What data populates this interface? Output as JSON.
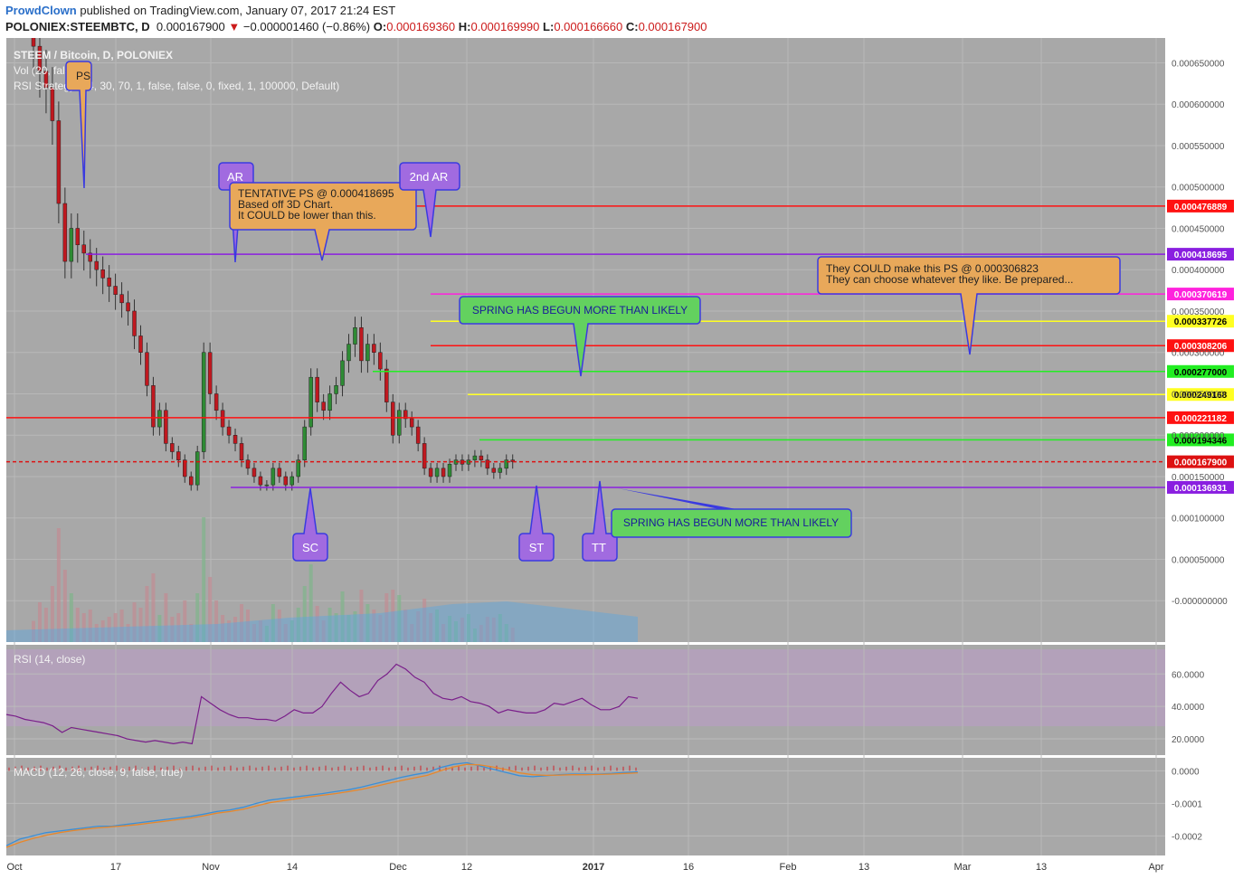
{
  "header": {
    "author": "ProwdClown",
    "published": "published on TradingView.com, January 07, 2017 21:24 EST",
    "symbol": "POLONIEX:STEEMBTC, D",
    "last": "0.000167900",
    "change_arrow": "▼",
    "change": "−0.000001460 (−0.86%)",
    "o_label": "O:",
    "o": "0.000169360",
    "h_label": "H:",
    "h": "0.000169990",
    "l_label": "L:",
    "l": "0.000166660",
    "c_label": "C:",
    "c": "0.000167900"
  },
  "legend": {
    "title": "STEEM / Bitcoin, D, POLONIEX",
    "vol": "Vol (20, false)",
    "strategy": "RSI Strategy (14, 30, 70, 1, false, false, 0, fixed, 1, 100000, Default)",
    "rsi": "RSI (14, close)",
    "macd": "MACD (12, 26, close, 9, false, true)"
  },
  "colors": {
    "bg": "#a8a8a8",
    "up": "#2e8b34",
    "down": "#c0181f",
    "axis_bg": "#ffffff",
    "rsi_band": "#b5a0bd",
    "macd_line": "#3a8fd8",
    "signal_line": "#e8872a",
    "callout_orange": "#e8a85a",
    "callout_green": "#63d15f",
    "callout_purple": "#a16be0"
  },
  "chart_data": [
    {
      "type": "candlestick",
      "title": "STEEM / Bitcoin, D, POLONIEX",
      "x_axis": {
        "ticks": [
          "Oct",
          "17",
          "Nov",
          "14",
          "Dec",
          "12",
          "2017",
          "16",
          "Feb",
          "13",
          "Mar",
          "13",
          "Apr"
        ]
      },
      "y_axis": {
        "ticks": [
          "0.000650000",
          "0.000600000",
          "0.000550000",
          "0.000500000",
          "0.000450000",
          "0.000400000",
          "0.000350000",
          "0.000300000",
          "0.000250000",
          "0.000200000",
          "0.000150000",
          "0.000100000",
          "0.000050000",
          "-0.000000000",
          "-0.000050000"
        ],
        "ylim": [
          -5e-05,
          0.00068
        ]
      },
      "last_price": {
        "label": "0.000167900",
        "value": 0.0001679
      },
      "levels": [
        {
          "label": "0.000476889",
          "value": 0.000476889,
          "color": "#ff1111",
          "text": "#ffffff"
        },
        {
          "label": "0.000418695",
          "value": 0.000418695,
          "color": "#8a1fe0",
          "text": "#ffffff"
        },
        {
          "label": "0.000370619",
          "value": 0.000370619,
          "color": "#ff22dd",
          "text": "#ffffff"
        },
        {
          "label": "0.000337726",
          "value": 0.000337726,
          "color": "#ffff22",
          "text": "#000000"
        },
        {
          "label": "0.000308206",
          "value": 0.000308206,
          "color": "#ff1111",
          "text": "#ffffff"
        },
        {
          "label": "0.000277000",
          "value": 0.000277,
          "color": "#22ee22",
          "text": "#000000"
        },
        {
          "label": "0.000249168",
          "value": 0.000249168,
          "color": "#ffff22",
          "text": "#000000"
        },
        {
          "label": "0.000221182",
          "value": 0.000221182,
          "color": "#ff1111",
          "text": "#ffffff"
        },
        {
          "label": "0.000194346",
          "value": 0.000194346,
          "color": "#22ee22",
          "text": "#000000"
        },
        {
          "label": "0.000167900",
          "value": 0.0001679,
          "color": "#dd1111",
          "text": "#ffffff"
        },
        {
          "label": "0.000136931",
          "value": 0.000136931,
          "color": "#8a1fe0",
          "text": "#ffffff"
        }
      ],
      "closes": [
        0.00067,
        0.00064,
        0.00062,
        0.00058,
        0.00048,
        0.00041,
        0.00045,
        0.00043,
        0.00042,
        0.00041,
        0.0004,
        0.00039,
        0.00038,
        0.00037,
        0.00036,
        0.00035,
        0.00032,
        0.0003,
        0.00026,
        0.00021,
        0.00023,
        0.00019,
        0.00018,
        0.00017,
        0.00015,
        0.00014,
        0.00018,
        0.0003,
        0.00025,
        0.00023,
        0.00021,
        0.0002,
        0.00019,
        0.00017,
        0.00016,
        0.00015,
        0.00014,
        0.00014,
        0.00016,
        0.00015,
        0.00014,
        0.00015,
        0.00017,
        0.00021,
        0.00027,
        0.00024,
        0.00023,
        0.00025,
        0.00026,
        0.00029,
        0.00031,
        0.00033,
        0.00029,
        0.00031,
        0.0003,
        0.00028,
        0.00024,
        0.0002,
        0.00023,
        0.00022,
        0.00021,
        0.00019,
        0.00016,
        0.00015,
        0.00016,
        0.00015,
        0.000165,
        0.00017,
        0.000165,
        0.00017,
        0.000175,
        0.00017,
        0.00016,
        0.000155,
        0.00016,
        0.00017,
        0.000168
      ],
      "annotations": [
        {
          "text": "PS",
          "kind": "purple"
        },
        {
          "text": "AR",
          "kind": "purple"
        },
        {
          "text": "2nd AR",
          "kind": "purple"
        },
        {
          "text": "SC",
          "kind": "purple"
        },
        {
          "text": "ST",
          "kind": "purple"
        },
        {
          "text": "TT",
          "kind": "purple"
        },
        {
          "text": "TENTATIVE PS @ 0.000418695\nBased off 3D Chart.\nIt COULD be lower than this.",
          "kind": "orange"
        },
        {
          "text": "They COULD make this PS @ 0.000306823\nThey can choose whatever they like.  Be prepared...",
          "kind": "orange"
        },
        {
          "text": "SPRING HAS BEGUN MORE THAN LIKELY",
          "kind": "green"
        },
        {
          "text": "SPRING HAS BEGUN MORE THAN LIKELY",
          "kind": "green"
        }
      ]
    },
    {
      "type": "line",
      "title": "RSI (14, close)",
      "y_axis": {
        "ticks": [
          "60.0000",
          "40.0000",
          "20.0000"
        ],
        "ylim": [
          10,
          78
        ]
      },
      "band": [
        30,
        70
      ],
      "values": [
        35,
        34,
        32,
        31,
        30,
        28,
        24,
        27,
        26,
        25,
        24,
        23,
        22,
        20,
        19,
        18,
        19,
        18,
        17,
        18,
        17,
        46,
        42,
        38,
        35,
        33,
        33,
        32,
        32,
        31,
        34,
        38,
        36,
        36,
        40,
        48,
        55,
        50,
        46,
        48,
        56,
        60,
        66,
        63,
        58,
        55,
        48,
        45,
        44,
        46,
        43,
        42,
        40,
        36,
        38,
        37,
        36,
        36,
        38,
        42,
        41,
        43,
        45,
        41,
        38,
        38,
        40,
        46,
        45
      ]
    },
    {
      "type": "line",
      "title": "MACD (12, 26, close, 9, false, true)",
      "y_axis": {
        "ticks": [
          "0.0000",
          "-0.0001",
          "-0.0002"
        ],
        "ylim": [
          -0.00026,
          4e-05
        ]
      },
      "series": [
        {
          "name": "MACD",
          "color": "#3a8fd8",
          "values": [
            -0.00023,
            -0.00021,
            -0.0002,
            -0.00019,
            -0.000185,
            -0.00018,
            -0.000175,
            -0.00017,
            -0.00017,
            -0.000165,
            -0.00016,
            -0.000155,
            -0.00015,
            -0.000145,
            -0.00014,
            -0.000133,
            -0.000125,
            -0.00012,
            -0.000112,
            -0.0001,
            -9e-05,
            -8.5e-05,
            -8e-05,
            -7.5e-05,
            -7e-05,
            -6.4e-05,
            -5.8e-05,
            -5e-05,
            -4e-05,
            -3e-05,
            -2e-05,
            -1.2e-05,
            -5e-06,
            1e-05,
            2e-05,
            2.5e-05,
            1.5e-05,
            5e-06,
            -5e-06,
            -1.5e-05,
            -1.8e-05,
            -1.5e-05,
            -1.2e-05,
            -1e-05,
            -1e-05,
            -1e-05,
            -8e-06,
            -5e-06,
            -3e-06
          ]
        },
        {
          "name": "Signal",
          "color": "#e8872a",
          "values": [
            -0.000235,
            -0.00022,
            -0.000208,
            -0.000198,
            -0.00019,
            -0.000184,
            -0.000179,
            -0.000175,
            -0.000172,
            -0.000169,
            -0.000165,
            -0.00016,
            -0.000155,
            -0.00015,
            -0.000145,
            -0.000138,
            -0.00013,
            -0.000125,
            -0.000118,
            -0.000108,
            -9.8e-05,
            -9.2e-05,
            -8.6e-05,
            -8e-05,
            -7.5e-05,
            -7e-05,
            -6.4e-05,
            -5.7e-05,
            -4.8e-05,
            -3.9e-05,
            -3e-05,
            -2.2e-05,
            -1.4e-05,
            0,
            1.2e-05,
            2e-05,
            1.8e-05,
            1.2e-05,
            4e-06,
            -6e-06,
            -1.2e-05,
            -1.4e-05,
            -1.3e-05,
            -1.2e-05,
            -1.2e-05,
            -1.1e-05,
            -1e-05,
            -8e-06,
            -6e-06
          ]
        }
      ]
    }
  ]
}
